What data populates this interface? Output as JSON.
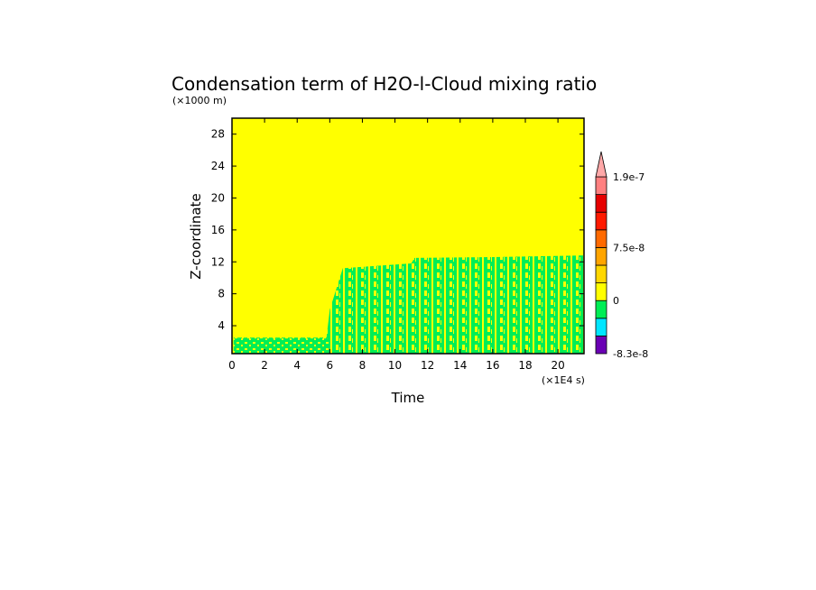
{
  "chart_data": {
    "type": "heatmap",
    "title": "Condensation term of H2O-l-Cloud mixing ratio",
    "xlabel": "Time",
    "ylabel": "Z-coordinate",
    "x_unit": "(×1E4 s)",
    "y_unit": "(×1000 m)",
    "xlim": [
      0,
      21.6
    ],
    "ylim": [
      0.5,
      30
    ],
    "x_ticks": [
      0,
      2,
      4,
      6,
      8,
      10,
      12,
      14,
      16,
      18,
      20
    ],
    "y_ticks": [
      4,
      8,
      12,
      16,
      20,
      24,
      28
    ],
    "x_tick_labels": [
      "0",
      "2",
      "4",
      "6",
      "8",
      "10",
      "12",
      "14",
      "16",
      "18",
      "20"
    ],
    "y_tick_labels": [
      "4",
      "8",
      "12",
      "16",
      "20",
      "24",
      "28"
    ],
    "grid": false,
    "background_value_color": "#ffff00",
    "colorbar": {
      "levels": [
        -8.3e-08,
        -5.5e-08,
        -2.8e-08,
        0,
        2.5e-08,
        5e-08,
        7.5e-08,
        1e-07,
        1.3e-07,
        1.6e-07,
        1.9e-07
      ],
      "colors": [
        "#6a00b4",
        "#00e6ff",
        "#00ee55",
        "#ffff00",
        "#ffd700",
        "#ffa500",
        "#ff6a00",
        "#ff1a00",
        "#e60000",
        "#ff8080"
      ],
      "over_color": "#ffa8a8",
      "tick_labels": [
        "1.9e-7",
        "7.5e-8",
        "0",
        "-8.3e-8"
      ]
    },
    "cloud_region": {
      "description_value": "negative condensation (green) layer",
      "top_height_profile": [
        {
          "x": 0.1,
          "z": 2.5
        },
        {
          "x": 5.8,
          "z": 2.5
        },
        {
          "x": 6.0,
          "z": 6.0
        },
        {
          "x": 6.8,
          "z": 11.2
        },
        {
          "x": 11.0,
          "z": 11.8
        },
        {
          "x": 11.2,
          "z": 12.5
        },
        {
          "x": 16.0,
          "z": 12.6
        },
        {
          "x": 21.6,
          "z": 12.8
        }
      ]
    }
  }
}
